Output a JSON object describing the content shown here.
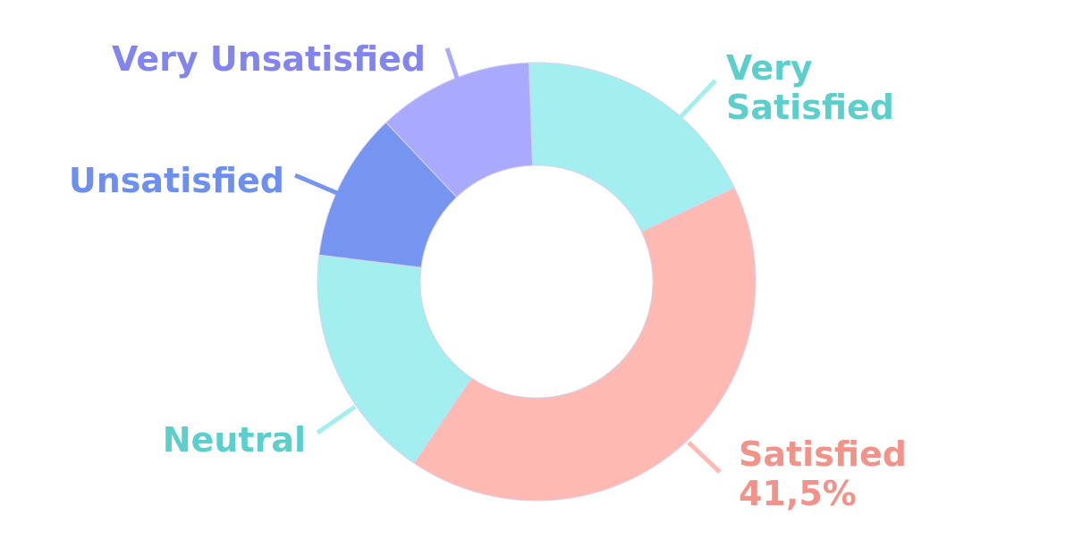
{
  "chart_data": {
    "type": "pie",
    "donut": true,
    "slices": [
      {
        "label": "Very Satisfied",
        "label_lines": [
          "Very",
          "Satisfied"
        ],
        "value": 18.5,
        "value_label": "",
        "color": "#a3eeee",
        "label_color": "#5ccfcc"
      },
      {
        "label": "Satisfied",
        "label_lines": [
          "Satisfied"
        ],
        "value": 41.5,
        "value_label": "41,5%",
        "color": "#fdb9b2",
        "label_color": "#f2938a"
      },
      {
        "label": "Neutral",
        "label_lines": [
          "Neutral"
        ],
        "value": 17.5,
        "value_label": "",
        "color": "#a3eeee",
        "label_color": "#5ccfcc"
      },
      {
        "label": "Unsatisfied",
        "label_lines": [
          "Unsatisfied"
        ],
        "value": 11,
        "value_label": "",
        "color": "#7595f0",
        "label_color": "#6d8ff0"
      },
      {
        "label": "Very Unsatisfied",
        "label_lines": [
          "Very Unsatisfied"
        ],
        "value": 11.5,
        "value_label": "",
        "color": "#a9aafe",
        "label_color": "#8385ef"
      }
    ]
  }
}
